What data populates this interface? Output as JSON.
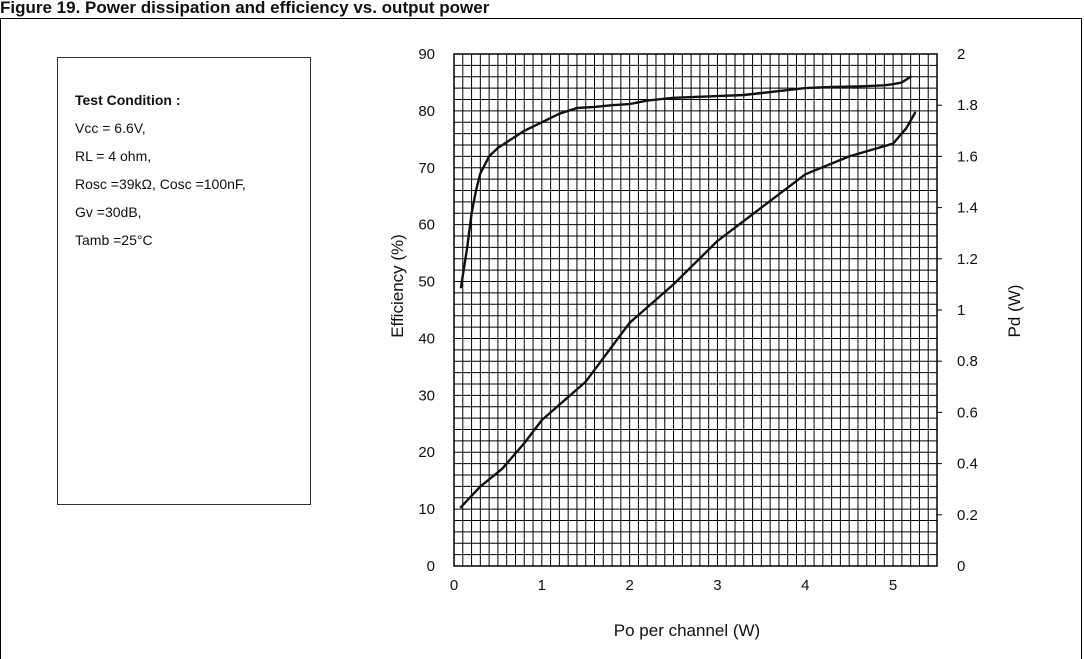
{
  "figure": {
    "caption": "Figure 19. Power dissipation and efficiency vs. output power"
  },
  "conditions": {
    "title": "Test Condition :",
    "lines": [
      "Vcc = 6.6V,",
      "RL = 4 ohm,",
      "Rosc =39kΩ, Cosc =100nF,",
      "Gv =30dB,",
      "Tamb =25°C"
    ]
  },
  "chart_data": {
    "type": "line",
    "xlabel": "Po per channel (W)",
    "ylabel": "Efficiency (%)",
    "y2label": "Pd (W)",
    "xlim": [
      0,
      5.5
    ],
    "ylim": [
      0,
      90
    ],
    "y2lim": [
      0,
      2
    ],
    "x_ticks": [
      "0",
      "1",
      "2",
      "3",
      "4",
      "5"
    ],
    "y_ticks": [
      "0",
      "10",
      "20",
      "30",
      "40",
      "50",
      "60",
      "70",
      "80",
      "90"
    ],
    "y2_ticks": [
      "0",
      "0.2",
      "0.4",
      "0.6",
      "0.8",
      "1",
      "1.2",
      "1.4",
      "1.6",
      "1.8",
      "2"
    ],
    "grid": true,
    "series": [
      {
        "axis": "left",
        "x": [
          0.08,
          0.15,
          0.2,
          0.25,
          0.3,
          0.35,
          0.4,
          0.5,
          0.6,
          0.7,
          0.8,
          1.0,
          1.2,
          1.4,
          1.6,
          1.8,
          2.0,
          2.2,
          2.5,
          3.0,
          3.3,
          3.6,
          4.0,
          4.3,
          4.6,
          4.9,
          5.0,
          5.1,
          5.2
        ],
        "values": [
          49,
          56,
          62,
          66,
          69,
          70.5,
          72,
          73.5,
          74.5,
          75.5,
          76.5,
          78,
          79.5,
          80.5,
          80.7,
          81,
          81.2,
          81.8,
          82.3,
          82.6,
          82.8,
          83.3,
          84,
          84.2,
          84.3,
          84.5,
          84.7,
          85,
          86
        ]
      },
      {
        "axis": "right",
        "x": [
          0.08,
          0.3,
          0.55,
          0.8,
          1.0,
          1.5,
          2.0,
          2.5,
          3.0,
          3.5,
          4.0,
          4.5,
          5.0,
          5.15,
          5.25
        ],
        "values": [
          0.23,
          0.31,
          0.38,
          0.48,
          0.57,
          0.72,
          0.95,
          1.1,
          1.27,
          1.4,
          1.53,
          1.6,
          1.65,
          1.71,
          1.77
        ]
      }
    ]
  }
}
